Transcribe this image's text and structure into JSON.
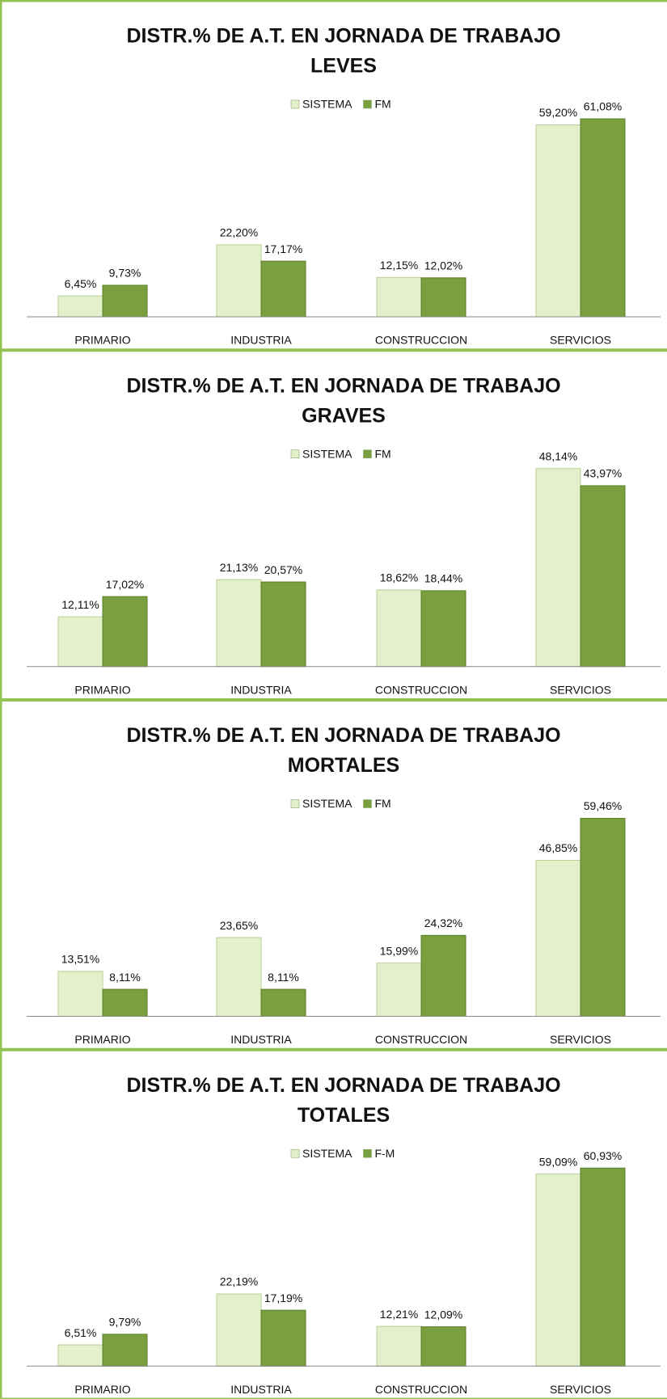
{
  "chart_data": [
    {
      "type": "bar",
      "title": "DISTR.% DE A.T. EN JORNADA DE TRABAJO",
      "subtitle": "LEVES",
      "categories": [
        "PRIMARIO",
        "INDUSTRIA",
        "CONSTRUCCION",
        "SERVICIOS"
      ],
      "legend": "top",
      "series": [
        {
          "name": "SISTEMA",
          "color": "#e4f0cc",
          "values": [
            6.45,
            22.2,
            12.15,
            59.2
          ],
          "value_labels": [
            "6,45%",
            "22,20%",
            "12,15%",
            "59,20%"
          ]
        },
        {
          "name": "FM",
          "color": "#7a9f3e",
          "values": [
            9.73,
            17.17,
            12.02,
            61.08
          ],
          "value_labels": [
            "9,73%",
            "17,17%",
            "12,02%",
            "61,08%"
          ]
        }
      ]
    },
    {
      "type": "bar",
      "title": "DISTR.% DE A.T. EN JORNADA DE TRABAJO",
      "subtitle": "GRAVES",
      "categories": [
        "PRIMARIO",
        "INDUSTRIA",
        "CONSTRUCCION",
        "SERVICIOS"
      ],
      "legend": "top",
      "series": [
        {
          "name": "SISTEMA",
          "color": "#e4f0cc",
          "values": [
            12.11,
            21.13,
            18.62,
            48.14
          ],
          "value_labels": [
            "12,11%",
            "21,13%",
            "18,62%",
            "48,14%"
          ]
        },
        {
          "name": "FM",
          "color": "#7a9f3e",
          "values": [
            17.02,
            20.57,
            18.44,
            43.97
          ],
          "value_labels": [
            "17,02%",
            "20,57%",
            "18,44%",
            "43,97%"
          ]
        }
      ]
    },
    {
      "type": "bar",
      "title": "DISTR.% DE A.T. EN JORNADA DE TRABAJO",
      "subtitle": "MORTALES",
      "categories": [
        "PRIMARIO",
        "INDUSTRIA",
        "CONSTRUCCION",
        "SERVICIOS"
      ],
      "legend": "top",
      "series": [
        {
          "name": "SISTEMA",
          "color": "#e4f0cc",
          "values": [
            13.51,
            23.65,
            15.99,
            46.85
          ],
          "value_labels": [
            "13,51%",
            "23,65%",
            "15,99%",
            "46,85%"
          ]
        },
        {
          "name": "FM",
          "color": "#7a9f3e",
          "values": [
            8.11,
            8.11,
            24.32,
            59.46
          ],
          "value_labels": [
            "8,11%",
            "8,11%",
            "24,32%",
            "59,46%"
          ]
        }
      ]
    },
    {
      "type": "bar",
      "title": "DISTR.% DE A.T. EN JORNADA DE TRABAJO",
      "subtitle": "TOTALES",
      "categories": [
        "PRIMARIO",
        "INDUSTRIA",
        "CONSTRUCCION",
        "SERVICIOS"
      ],
      "legend": "top",
      "series": [
        {
          "name": "SISTEMA",
          "color": "#e4f0cc",
          "values": [
            6.51,
            22.19,
            12.21,
            59.09
          ],
          "value_labels": [
            "6,51%",
            "22,19%",
            "12,21%",
            "59,09%"
          ]
        },
        {
          "name": "F-M",
          "color": "#7a9f3e",
          "values": [
            9.79,
            17.19,
            12.09,
            60.93
          ],
          "value_labels": [
            "9,79%",
            "17,19%",
            "12,09%",
            "60,93%"
          ]
        }
      ]
    }
  ]
}
